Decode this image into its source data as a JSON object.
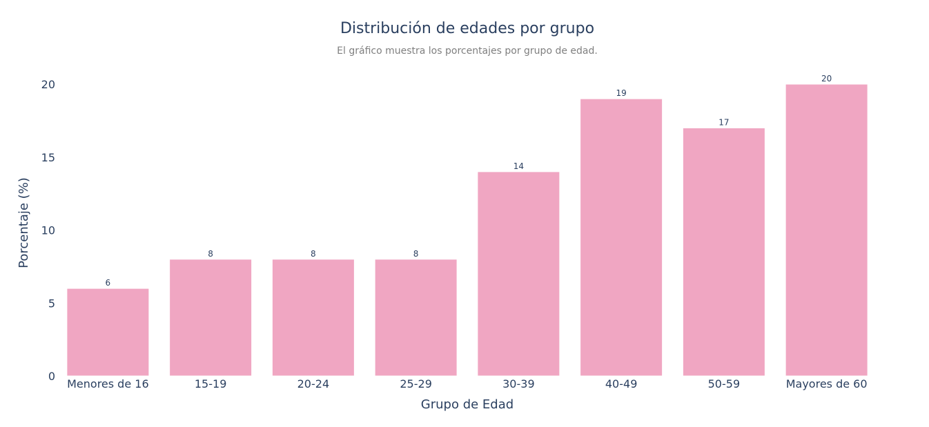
{
  "chart_data": {
    "type": "bar",
    "title": "Distribución de edades por grupo",
    "subtitle": "El gráfico muestra los porcentajes por grupo de edad.",
    "xlabel": "Grupo de Edad",
    "ylabel": "Porcentaje (%)",
    "categories": [
      "Menores de 16",
      "15-19",
      "20-24",
      "25-29",
      "30-39",
      "40-49",
      "50-59",
      "Mayores de 60"
    ],
    "values": [
      6,
      8,
      8,
      8,
      14,
      19,
      17,
      20
    ],
    "ylim": [
      0,
      20
    ],
    "yticks": [
      0,
      5,
      10,
      15,
      20
    ],
    "bar_color": "#f0a6c2",
    "text_color": "#2a3f5f",
    "grid": false,
    "legend": "none"
  }
}
